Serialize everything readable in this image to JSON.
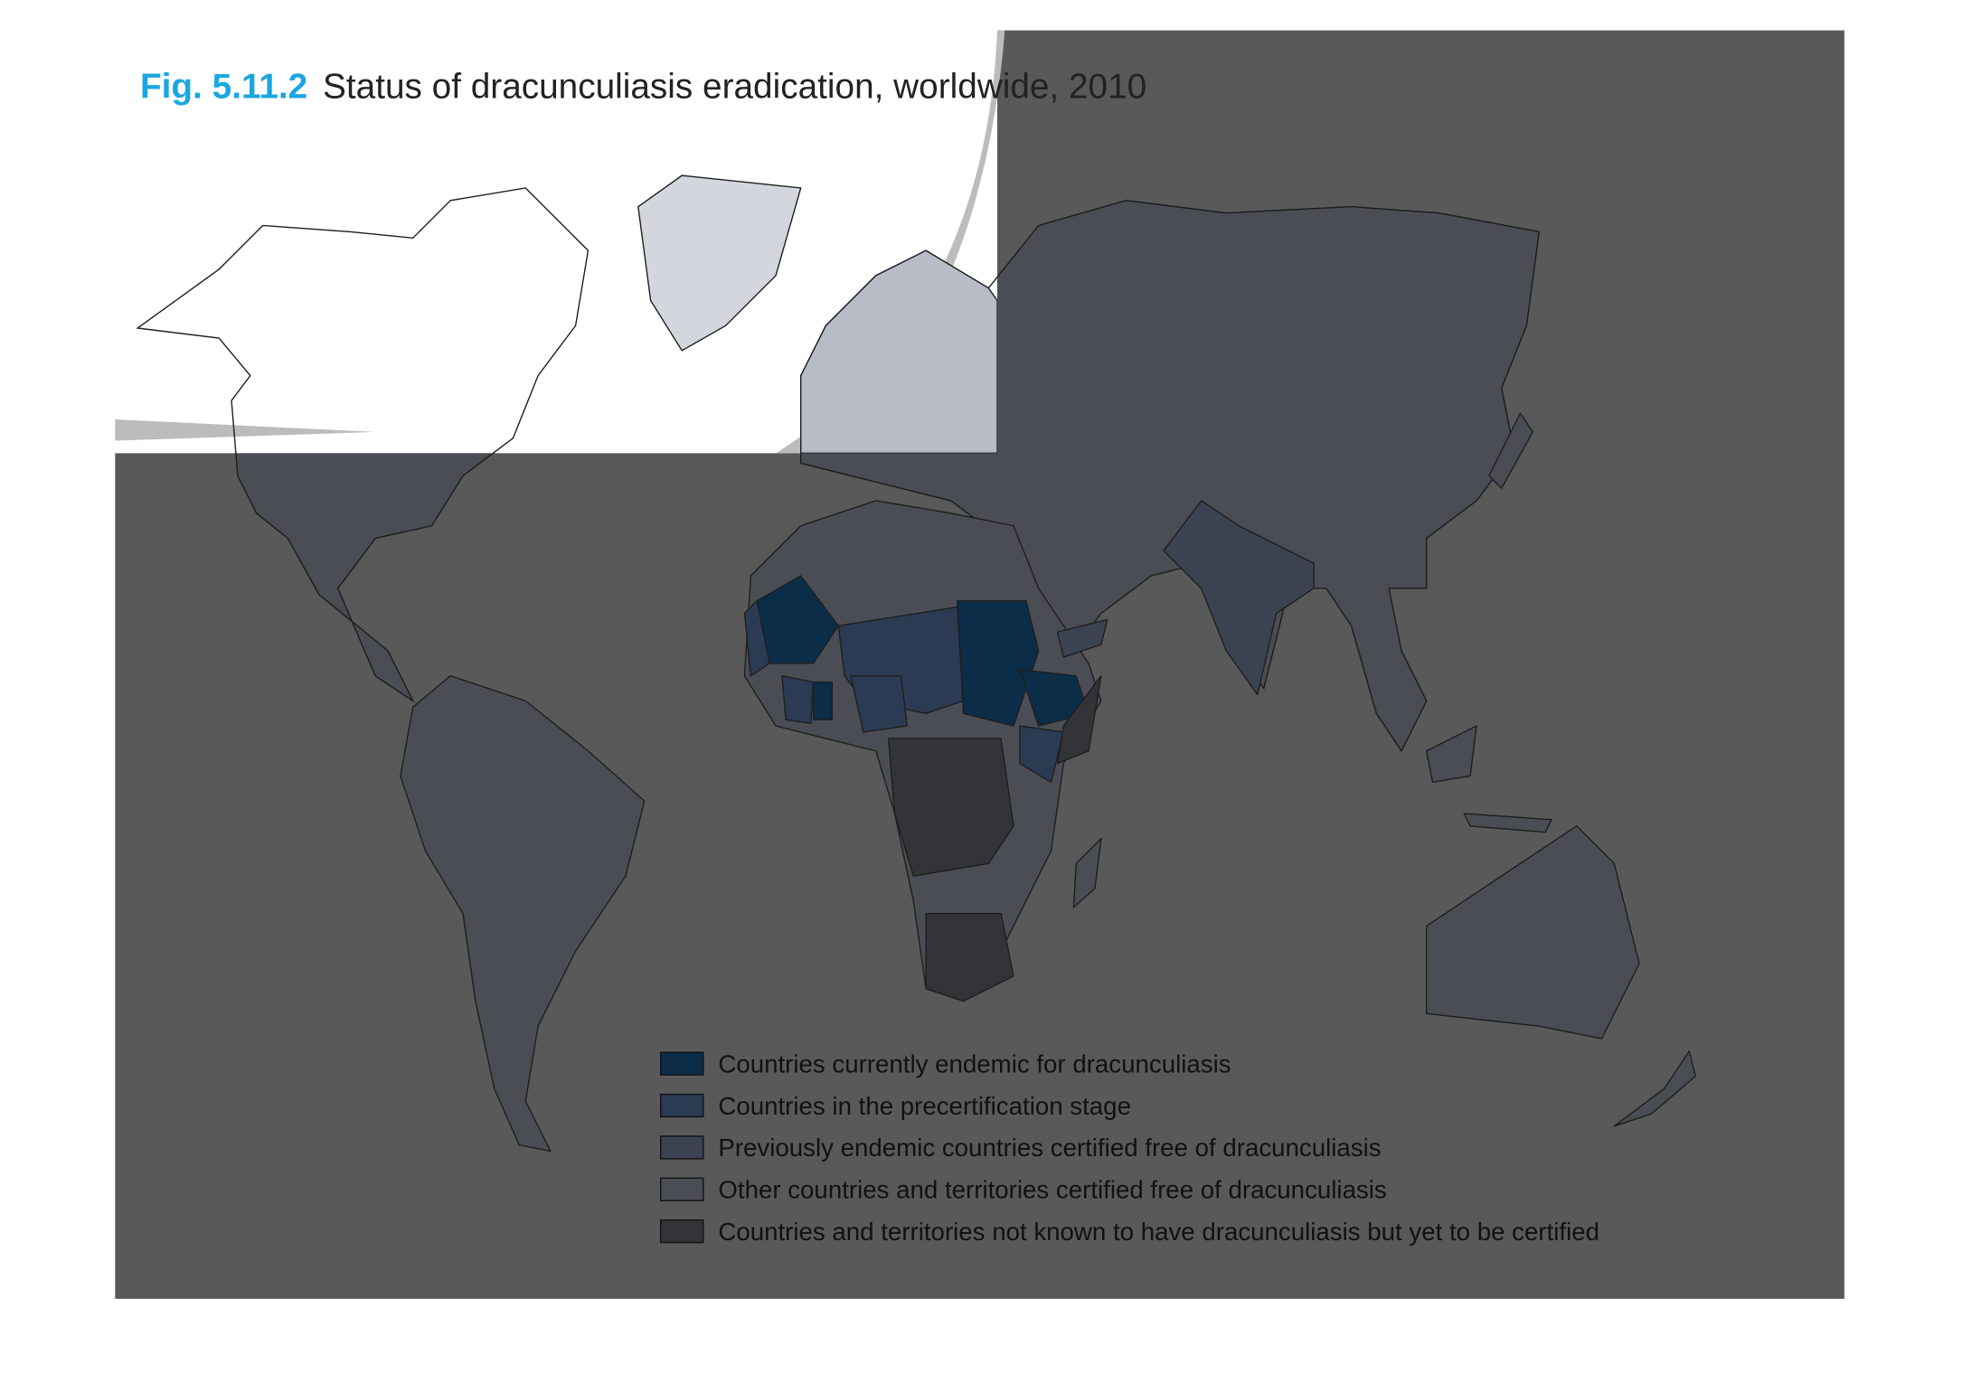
{
  "title": {
    "figure": "Fig. 5.11.2",
    "text": "Status of dracunculiasis eradication, worldwide, 2010"
  },
  "legend": [
    {
      "label": "Countries currently endemic for dracunculiasis",
      "color": "#0b2d48"
    },
    {
      "label": "Countries in the precertification stage",
      "color": "#2c3b54"
    },
    {
      "label": "Previously endemic countries certified free of dracunculiasis",
      "color": "#3b4353"
    },
    {
      "label": "Other countries and territories certified free of dracunculiasis",
      "color": "#4b4d55"
    },
    {
      "label": "Countries and territories not known to have dracunculiasis but yet to be certified",
      "color": "#333437"
    }
  ]
}
